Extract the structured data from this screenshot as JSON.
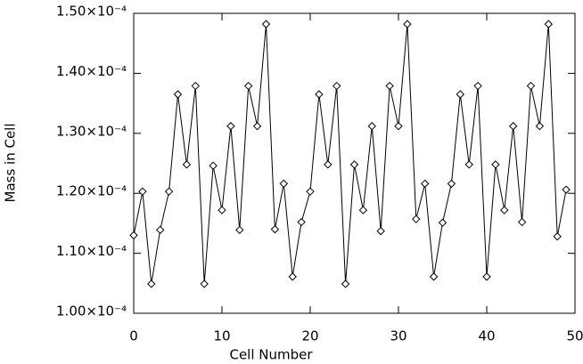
{
  "chart_data": {
    "type": "line",
    "x_label": "Cell Number",
    "y_label": "Mass in Cell",
    "x": [
      0,
      1,
      2,
      3,
      4,
      5,
      6,
      7,
      8,
      9,
      10,
      11,
      12,
      13,
      14,
      15,
      16,
      17,
      18,
      19,
      20,
      21,
      22,
      23,
      24,
      25,
      26,
      27,
      28,
      29,
      30,
      31,
      32,
      33,
      34,
      35,
      36,
      37,
      38,
      39,
      40,
      41,
      42,
      43,
      44,
      45,
      46,
      47,
      48,
      49
    ],
    "series": [
      {
        "color": "#000000",
        "values": [
          0.000113,
          0.0001203,
          0.0001049,
          0.0001139,
          0.0001203,
          0.0001365,
          0.0001248,
          0.0001379,
          0.0001049,
          0.0001246,
          0.0001172,
          0.0001312,
          0.0001139,
          0.0001379,
          0.0001312,
          0.0001482,
          0.000114,
          0.0001216,
          0.0001061,
          0.0001152,
          0.0001203,
          0.0001365,
          0.0001248,
          0.0001379,
          0.0001049,
          0.0001248,
          0.0001172,
          0.0001312,
          0.0001137,
          0.0001379,
          0.0001312,
          0.0001482,
          0.0001157,
          0.0001216,
          0.0001061,
          0.0001151,
          0.0001216,
          0.0001365,
          0.0001248,
          0.0001379,
          0.0001061,
          0.0001248,
          0.0001172,
          0.0001312,
          0.0001152,
          0.0001379,
          0.0001312,
          0.0001482,
          0.0001128,
          0.0001206
        ]
      }
    ],
    "xlim": [
      0,
      50
    ],
    "xticks": [
      0,
      10,
      20,
      30,
      40,
      50
    ],
    "ylim": [
      0.0001,
      0.00015
    ],
    "yticks": [
      {
        "value": 0.0001,
        "label": "1.00×10⁻⁴"
      },
      {
        "value": 0.00011,
        "label": "1.10×10⁻⁴"
      },
      {
        "value": 0.00012,
        "label": "1.20×10⁻⁴"
      },
      {
        "value": 0.00013,
        "label": "1.30×10⁻⁴"
      },
      {
        "value": 0.00014,
        "label": "1.40×10⁻⁴"
      },
      {
        "value": 0.00015,
        "label": "1.50×10⁻⁴"
      }
    ]
  }
}
